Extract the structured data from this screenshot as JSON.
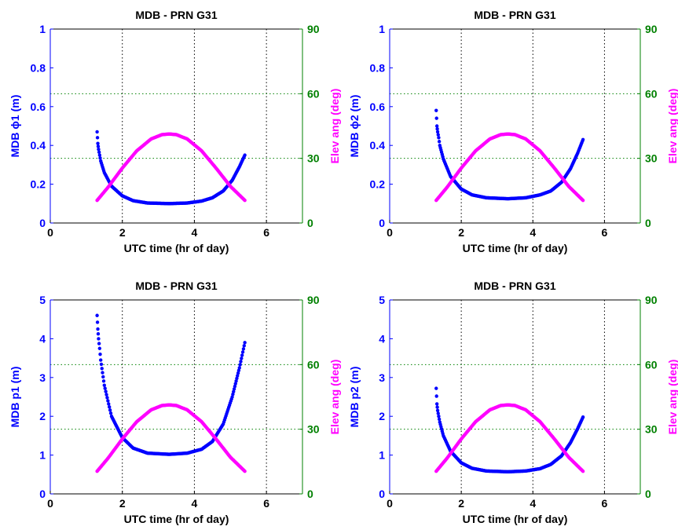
{
  "colors": {
    "left_axis": "#0000ff",
    "right_axis": "#008000",
    "mdb_series": "#0000ff",
    "elev_series": "#ff00ff",
    "axes_frame": "#000000"
  },
  "chart_data": [
    {
      "type": "scatter",
      "title": "MDB - PRN  G31",
      "xlabel": "UTC time (hr of day)",
      "ylabel_left": "MDB  ϕ1 (m)",
      "ylabel_right": "Elev ang (deg)",
      "xlim": [
        0,
        7
      ],
      "x_ticks": [
        0,
        2,
        4,
        6
      ],
      "ylim_left": [
        0,
        1
      ],
      "yticks_left": [
        0,
        0.2,
        0.4,
        0.6,
        0.8,
        1
      ],
      "ytick_labels_left": [
        "0",
        "0.2",
        "0.4",
        "0.6",
        "0.8",
        "1"
      ],
      "ylim_right": [
        0,
        90
      ],
      "yticks_right": [
        0,
        30,
        60,
        90
      ],
      "grid": "dotted",
      "series": [
        {
          "axis": "left",
          "x": [
            1.3,
            1.32,
            1.34,
            1.37,
            1.4,
            1.5,
            1.7,
            2.0,
            2.3,
            2.7,
            3.3,
            3.8,
            4.2,
            4.5,
            4.8,
            5.05,
            5.25,
            5.4
          ],
          "values": [
            0.47,
            0.41,
            0.38,
            0.35,
            0.32,
            0.26,
            0.19,
            0.14,
            0.115,
            0.103,
            0.1,
            0.103,
            0.113,
            0.13,
            0.165,
            0.22,
            0.29,
            0.35
          ]
        },
        {
          "axis": "right",
          "x": [
            1.3,
            1.6,
            2.0,
            2.4,
            2.8,
            3.1,
            3.3,
            3.5,
            3.8,
            4.2,
            4.6,
            5.0,
            5.4
          ],
          "values": [
            10.5,
            16.5,
            25.5,
            33.5,
            39.0,
            41.0,
            41.3,
            41.0,
            39.0,
            33.5,
            25.5,
            17.0,
            10.5
          ]
        }
      ]
    },
    {
      "type": "scatter",
      "title": "MDB - PRN  G31",
      "xlabel": "UTC time (hr of day)",
      "ylabel_left": "MDB  ϕ2 (m)",
      "ylabel_right": "Elev ang (deg)",
      "xlim": [
        0,
        7
      ],
      "x_ticks": [
        0,
        2,
        4,
        6
      ],
      "ylim_left": [
        0,
        1
      ],
      "yticks_left": [
        0,
        0.2,
        0.4,
        0.6,
        0.8,
        1
      ],
      "ytick_labels_left": [
        "0",
        "0.2",
        "0.4",
        "0.6",
        "0.8",
        "1"
      ],
      "ylim_right": [
        0,
        90
      ],
      "yticks_right": [
        0,
        30,
        60,
        90
      ],
      "grid": "dotted",
      "series": [
        {
          "axis": "left",
          "x": [
            1.3,
            1.32,
            1.34,
            1.37,
            1.4,
            1.5,
            1.7,
            2.0,
            2.3,
            2.7,
            3.3,
            3.8,
            4.2,
            4.5,
            4.8,
            5.05,
            5.25,
            5.4
          ],
          "values": [
            0.58,
            0.5,
            0.47,
            0.44,
            0.4,
            0.33,
            0.24,
            0.175,
            0.145,
            0.13,
            0.125,
            0.13,
            0.145,
            0.165,
            0.21,
            0.28,
            0.36,
            0.43
          ]
        },
        {
          "axis": "right",
          "x": [
            1.3,
            1.6,
            2.0,
            2.4,
            2.8,
            3.1,
            3.3,
            3.5,
            3.8,
            4.2,
            4.6,
            5.0,
            5.4
          ],
          "values": [
            10.5,
            16.5,
            25.5,
            33.5,
            39.0,
            41.0,
            41.3,
            41.0,
            39.0,
            33.5,
            25.5,
            17.0,
            10.5
          ]
        }
      ]
    },
    {
      "type": "scatter",
      "title": "MDB - PRN  G31",
      "xlabel": "UTC time (hr of day)",
      "ylabel_left": "MDB  p1 (m)",
      "ylabel_right": "Elev ang (deg)",
      "xlim": [
        0,
        7
      ],
      "x_ticks": [
        0,
        2,
        4,
        6
      ],
      "ylim_left": [
        0,
        5
      ],
      "yticks_left": [
        0,
        1,
        2,
        3,
        4,
        5
      ],
      "ytick_labels_left": [
        "0",
        "1",
        "2",
        "3",
        "4",
        "5"
      ],
      "ylim_right": [
        0,
        90
      ],
      "yticks_right": [
        0,
        30,
        60,
        90
      ],
      "grid": "dotted",
      "series": [
        {
          "axis": "left",
          "x": [
            1.3,
            1.32,
            1.34,
            1.37,
            1.4,
            1.5,
            1.7,
            2.0,
            2.3,
            2.7,
            3.3,
            3.8,
            4.2,
            4.5,
            4.8,
            5.05,
            5.25,
            5.4
          ],
          "values": [
            4.6,
            4.25,
            4.0,
            3.75,
            3.45,
            2.8,
            2.0,
            1.45,
            1.18,
            1.05,
            1.02,
            1.05,
            1.15,
            1.35,
            1.8,
            2.5,
            3.25,
            3.9
          ]
        },
        {
          "axis": "right",
          "x": [
            1.3,
            1.6,
            2.0,
            2.4,
            2.8,
            3.1,
            3.3,
            3.5,
            3.8,
            4.2,
            4.6,
            5.0,
            5.4
          ],
          "values": [
            10.5,
            16.5,
            25.5,
            33.5,
            39.0,
            41.0,
            41.3,
            41.0,
            39.0,
            33.5,
            25.5,
            17.0,
            10.5
          ]
        }
      ]
    },
    {
      "type": "scatter",
      "title": "MDB - PRN  G31",
      "xlabel": "UTC time (hr of day)",
      "ylabel_left": "MDB  p2 (m)",
      "ylabel_right": "Elev ang (deg)",
      "xlim": [
        0,
        7
      ],
      "x_ticks": [
        0,
        2,
        4,
        6
      ],
      "ylim_left": [
        0,
        5
      ],
      "yticks_left": [
        0,
        1,
        2,
        3,
        4,
        5
      ],
      "ytick_labels_left": [
        "0",
        "1",
        "2",
        "3",
        "4",
        "5"
      ],
      "ylim_right": [
        0,
        90
      ],
      "yticks_right": [
        0,
        30,
        60,
        90
      ],
      "grid": "dotted",
      "series": [
        {
          "axis": "left",
          "x": [
            1.3,
            1.32,
            1.34,
            1.37,
            1.4,
            1.5,
            1.7,
            2.0,
            2.3,
            2.7,
            3.3,
            3.8,
            4.2,
            4.5,
            4.8,
            5.05,
            5.25,
            5.4
          ],
          "values": [
            2.72,
            2.32,
            2.15,
            2.0,
            1.85,
            1.5,
            1.1,
            0.8,
            0.66,
            0.59,
            0.57,
            0.59,
            0.65,
            0.76,
            0.98,
            1.32,
            1.68,
            1.98
          ]
        },
        {
          "axis": "right",
          "x": [
            1.3,
            1.6,
            2.0,
            2.4,
            2.8,
            3.1,
            3.3,
            3.5,
            3.8,
            4.2,
            4.6,
            5.0,
            5.4
          ],
          "values": [
            10.5,
            16.5,
            25.5,
            33.5,
            39.0,
            41.0,
            41.3,
            41.0,
            39.0,
            33.5,
            25.5,
            17.0,
            10.5
          ]
        }
      ]
    }
  ]
}
